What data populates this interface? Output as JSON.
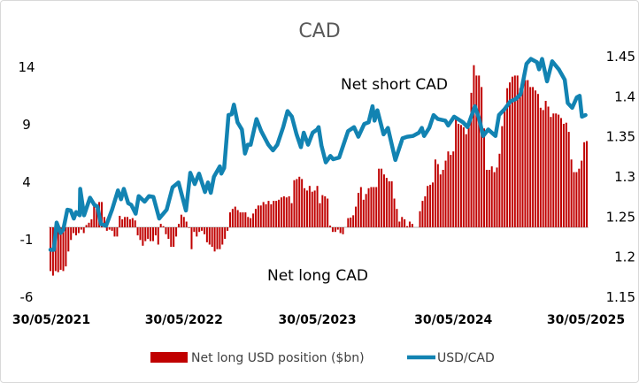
{
  "chart_data": {
    "type": "bar+line",
    "title": "CAD",
    "x_unit": "weeks since 30/05/2021",
    "xlim": [
      0,
      209
    ],
    "x_tick_labels": [
      {
        "week": 0,
        "label": "30/05/2021"
      },
      {
        "week": 52,
        "label": "30/05/2022"
      },
      {
        "week": 104,
        "label": "30/05/2023"
      },
      {
        "week": 157,
        "label": "30/05/2024"
      },
      {
        "week": 209,
        "label": "30/05/2025"
      }
    ],
    "left_axis": {
      "ylim": [
        -6,
        14
      ],
      "ticks": [
        "-6",
        "-1",
        "4",
        "9",
        "14"
      ],
      "tick_values": [
        -6,
        -1,
        4,
        9,
        14
      ]
    },
    "right_axis": {
      "ylim": [
        1.15,
        1.45
      ],
      "ticks": [
        "1.15",
        "1.2",
        "1.25",
        "1.3",
        "1.35",
        "1.4",
        "1.45"
      ],
      "tick_values": [
        1.15,
        1.2,
        1.25,
        1.3,
        1.35,
        1.4,
        1.45
      ]
    },
    "annotations": {
      "top": "Net short CAD",
      "bottom": "Net long CAD"
    },
    "legend_position": "bottom",
    "colors": {
      "bars": "#C00000",
      "line": "#1283B2",
      "zero_line": "#d9d9d9"
    },
    "series": [
      {
        "name": "Net long USD position ($bn)",
        "type": "bar",
        "axis": "left",
        "values": [
          -3.8,
          -4.2,
          -3.8,
          -3.9,
          -3.7,
          -3.8,
          -3.4,
          -2.1,
          -1.1,
          -0.5,
          -0.7,
          -0.5,
          -0.2,
          -0.5,
          0.2,
          0.4,
          0.7,
          2.0,
          1.6,
          2.2,
          2.2,
          0.9,
          -0.3,
          -0.2,
          -0.3,
          -0.8,
          -0.8,
          1.0,
          0.7,
          0.9,
          0.9,
          0.7,
          0.8,
          0.6,
          -0.7,
          -1.1,
          -1.6,
          -1.2,
          -1.0,
          -1.2,
          -1.2,
          -0.7,
          -1.5,
          0.3,
          0.1,
          -0.6,
          -1.0,
          -1.7,
          -1.7,
          -0.8,
          0.3,
          1.1,
          0.9,
          0.5,
          -0.05,
          -1.9,
          -0.4,
          -0.8,
          -0.4,
          -0.3,
          -0.6,
          -1.3,
          -1.5,
          -1.7,
          -2.1,
          -1.9,
          -1.9,
          -1.5,
          -1.0,
          -0.3,
          1.3,
          1.6,
          1.8,
          1.5,
          1.3,
          1.3,
          1.3,
          0.9,
          0.8,
          1.2,
          1.6,
          1.9,
          1.9,
          2.2,
          2.0,
          2.3,
          2.0,
          2.3,
          2.3,
          2.4,
          2.6,
          2.7,
          2.6,
          2.7,
          2.1,
          4.1,
          4.2,
          4.4,
          4.2,
          3.4,
          3.2,
          3.6,
          3.1,
          3.2,
          3.6,
          2.1,
          2.8,
          2.7,
          2.5,
          0.15,
          -0.4,
          -0.4,
          -0.2,
          -0.5,
          -0.6,
          0,
          0.8,
          0.85,
          1.05,
          1.8,
          3.0,
          3.5,
          2.4,
          2.9,
          3.4,
          3.5,
          3.5,
          3.5,
          5.1,
          5.1,
          4.6,
          4.3,
          4.0,
          4.0,
          2.5,
          1.6,
          0.5,
          0.9,
          0.7,
          0.1,
          0.5,
          0.3,
          0,
          0,
          1.4,
          2.3,
          2.7,
          3.6,
          3.7,
          3.9,
          5.9,
          5.5,
          4.6,
          5.0,
          5.8,
          6.6,
          6.3,
          6.6,
          9.4,
          9.0,
          8.9,
          8.7,
          8.1,
          8.7,
          11.7,
          14.1,
          13.2,
          13.2,
          12.2,
          8.6,
          5.0,
          5.0,
          5.3,
          4.8,
          5.2,
          6.4,
          8.8,
          10.4,
          12.1,
          12.6,
          13.1,
          13.2,
          13.2,
          12.1,
          12.5,
          12.8,
          12.8,
          12.2,
          12.2,
          11.9,
          11.6,
          10.4,
          10.2,
          11.0,
          10.5,
          9.6,
          9.9,
          9.9,
          9.8,
          9.5,
          9.0,
          9.1,
          8.3,
          5.9,
          4.8,
          4.8,
          5.1,
          5.8,
          7.4,
          7.5
        ]
      },
      {
        "name": "USD/CAD",
        "type": "line",
        "axis": "right",
        "x": [
          0,
          1.3,
          2.4,
          3.9,
          5,
          6.6,
          7.9,
          9.1,
          10,
          11.4,
          11.6,
          13.1,
          15.4,
          17.1,
          18.3,
          19.7,
          21.7,
          24,
          26.3,
          27.5,
          28.6,
          30.3,
          31.5,
          33.2,
          34.4,
          36.7,
          38.4,
          40.1,
          42.4,
          45.3,
          47.6,
          49.9,
          52.8,
          54.5,
          56.2,
          57.9,
          60.2,
          61.4,
          62.5,
          63.7,
          66,
          66.6,
          67.7,
          69.4,
          70.6,
          71.5,
          72.9,
          74.6,
          75.8,
          76.9,
          78,
          80.3,
          82.1,
          84.9,
          86.7,
          88.4,
          90.7,
          92.4,
          94.1,
          95.9,
          97.6,
          98.7,
          100.4,
          102.2,
          103.9,
          104.5,
          105.6,
          107.3,
          109.1,
          110.2,
          112.5,
          116,
          118.3,
          120,
          122.3,
          124,
          125.5,
          126.3,
          127.4,
          129.8,
          131.5,
          134.4,
          137.2,
          139,
          141.3,
          143.6,
          144.7,
          145.6,
          147.6,
          149.3,
          151,
          153.9,
          155,
          157.3,
          160.8,
          162.5,
          165.4,
          167.1,
          168.6,
          170.6,
          173.4,
          174.8,
          176.9,
          179.2,
          181.3,
          183.2,
          185.5,
          187.2,
          189.6,
          190.4,
          191.6,
          193.5,
          195.5,
          198.1,
          200.4,
          201.6,
          203.3,
          205.1,
          206.2,
          207.1,
          208.5
        ],
        "values": [
          1.208,
          1.208,
          1.242,
          1.229,
          1.233,
          1.258,
          1.257,
          1.247,
          1.255,
          1.251,
          1.284,
          1.251,
          1.273,
          1.264,
          1.262,
          1.24,
          1.238,
          1.258,
          1.282,
          1.271,
          1.284,
          1.266,
          1.264,
          1.253,
          1.275,
          1.268,
          1.275,
          1.274,
          1.247,
          1.258,
          1.286,
          1.292,
          1.257,
          1.304,
          1.29,
          1.303,
          1.28,
          1.292,
          1.279,
          1.299,
          1.312,
          1.303,
          1.31,
          1.376,
          1.377,
          1.389,
          1.367,
          1.358,
          1.328,
          1.339,
          1.339,
          1.371,
          1.356,
          1.339,
          1.332,
          1.339,
          1.361,
          1.381,
          1.374,
          1.352,
          1.336,
          1.354,
          1.339,
          1.354,
          1.358,
          1.361,
          1.338,
          1.317,
          1.325,
          1.321,
          1.323,
          1.356,
          1.361,
          1.349,
          1.365,
          1.367,
          1.387,
          1.369,
          1.382,
          1.352,
          1.36,
          1.32,
          1.347,
          1.349,
          1.35,
          1.354,
          1.36,
          1.35,
          1.36,
          1.376,
          1.371,
          1.369,
          1.363,
          1.374,
          1.367,
          1.361,
          1.387,
          1.371,
          1.35,
          1.358,
          1.35,
          1.376,
          1.383,
          1.393,
          1.396,
          1.402,
          1.44,
          1.446,
          1.442,
          1.433,
          1.446,
          1.418,
          1.443,
          1.433,
          1.42,
          1.391,
          1.385,
          1.398,
          1.4,
          1.374,
          1.376
        ]
      }
    ]
  }
}
